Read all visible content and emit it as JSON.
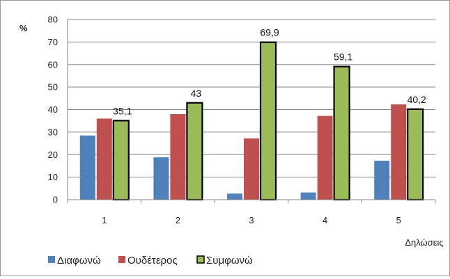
{
  "chart_data": {
    "type": "bar",
    "title": "",
    "xlabel": "Δηλώσεις",
    "ylabel": "%",
    "ylim": [
      0,
      80
    ],
    "yticks": [
      0,
      10,
      20,
      30,
      40,
      50,
      60,
      70,
      80
    ],
    "grid": true,
    "legend_position": "bottom-left",
    "categories": [
      "1",
      "2",
      "3",
      "4",
      "5"
    ],
    "series": [
      {
        "name": "Διαφωνώ",
        "color": "#4f81bd",
        "values": [
          28.5,
          18.8,
          2.7,
          3.2,
          17.3
        ]
      },
      {
        "name": "Ουδέτερος",
        "color": "#c0504d",
        "values": [
          36.0,
          38.0,
          27.2,
          37.2,
          42.3
        ]
      },
      {
        "name": "Συμφωνώ",
        "color": "#9bbb59",
        "values": [
          35.1,
          43.0,
          69.9,
          59.1,
          40.2
        ],
        "outlined": true
      }
    ],
    "data_labels": {
      "series": "Συμφωνώ",
      "labels": [
        "35,1",
        "43",
        "69,9",
        "59,1",
        "40,2"
      ]
    }
  }
}
